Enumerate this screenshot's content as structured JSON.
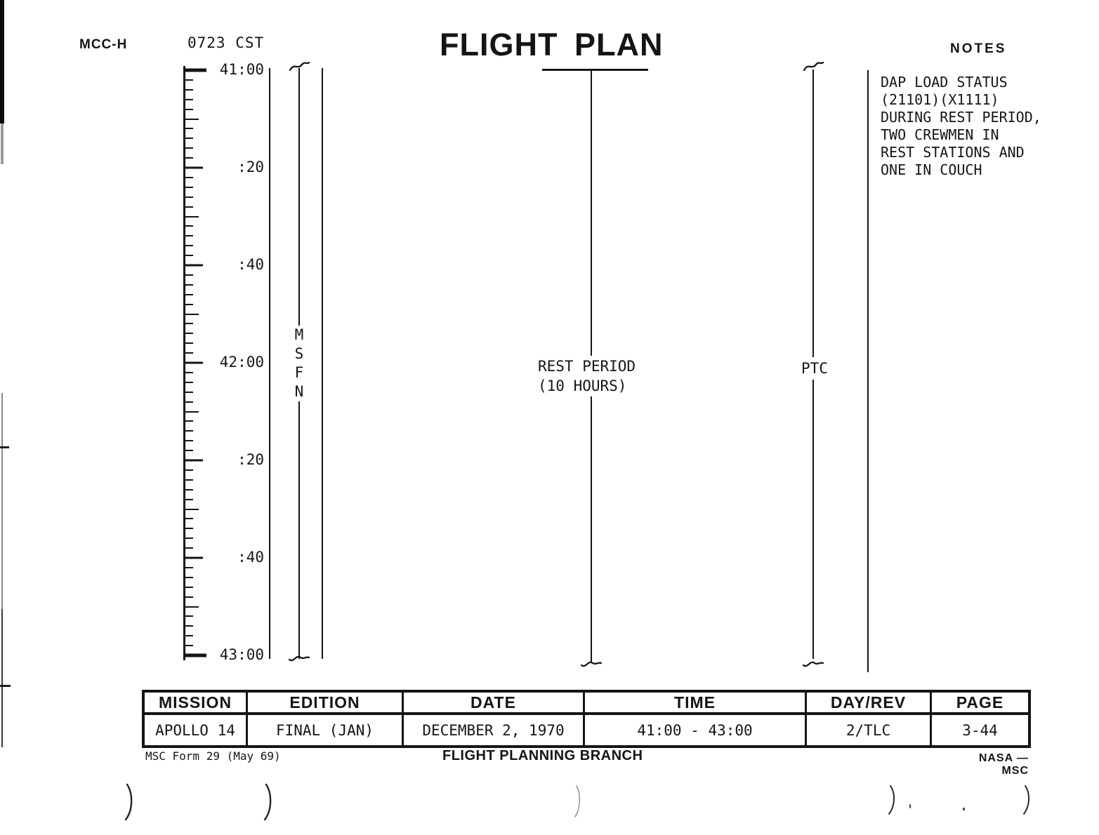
{
  "header": {
    "site_label": "MCC-H",
    "clock": "0723 CST",
    "title": "FLIGHT PLAN",
    "notes_heading": "NOTES"
  },
  "timeline": {
    "start_get": "41:00",
    "end_get": "43:00",
    "ruler": {
      "duration_min": 120,
      "minor_step_min": 2,
      "major_step_min": 10,
      "label_step_min": 20,
      "labels": [
        "41:00",
        ":20",
        ":40",
        "42:00",
        ":20",
        ":40",
        "43:00"
      ]
    },
    "msfn_label": "MSFN",
    "activities": {
      "rest_period": {
        "lines": [
          "REST PERIOD",
          "(10 HOURS)"
        ]
      },
      "ptc": {
        "label": "PTC"
      }
    }
  },
  "notes": {
    "lines": [
      "DAP LOAD STATUS",
      "(21101)(X1111)",
      "DURING REST PERIOD,",
      "TWO CREWMEN IN",
      "REST STATIONS AND",
      "ONE IN COUCH"
    ]
  },
  "footer_table": {
    "headers": [
      "MISSION",
      "EDITION",
      "DATE",
      "TIME",
      "DAY/REV",
      "PAGE"
    ],
    "values": [
      "APOLLO 14",
      "FINAL (JAN)",
      "DECEMBER 2, 1970",
      "41:00 - 43:00",
      "2/TLC",
      "3-44"
    ]
  },
  "footer": {
    "form_id": "MSC Form 29 (May 69)",
    "branch": "FLIGHT PLANNING BRANCH",
    "agency": "NASA — MSC"
  },
  "ink_color": "#151515",
  "paper_color": "#ffffff"
}
